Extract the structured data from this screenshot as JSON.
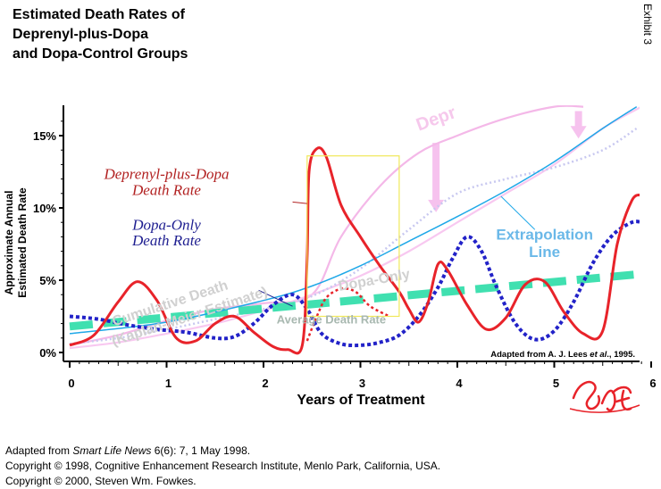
{
  "header": {
    "title_lines": [
      "Estimated Death Rates of",
      "Deprenyl-plus-Dopa",
      "and Dopa-Control Groups"
    ],
    "exhibit": "Exhibit 3"
  },
  "footer": {
    "line1_prefix": "Adapted from ",
    "line1_pub": "Smart Life News",
    "line1_suffix": " 6(6): 7, 1 May 1998.",
    "line2": "Copyright © 1998, Cognitive Enhancement Research Institute, Menlo Park, California, USA.",
    "line3": "Copyright © 2000, Steven Wm. Fowkes."
  },
  "chart_data": {
    "type": "line",
    "title": "Estimated Death Rates of Deprenyl-plus-Dopa and Dopa-Control Groups",
    "xlabel": "Years of Treatment",
    "ylabel": [
      "Approximate Annual",
      "Estimated Death Rate"
    ],
    "xlim": [
      0,
      6
    ],
    "ylim": [
      0,
      17
    ],
    "xticks": [
      0,
      1,
      2,
      3,
      4,
      5,
      6
    ],
    "xtick_labels": [
      "0",
      "1",
      "2",
      "3",
      "4",
      "5",
      "6"
    ],
    "yticks": [
      0,
      5,
      10,
      15
    ],
    "ytick_labels": [
      "0%",
      "5%",
      "10%",
      "15%"
    ],
    "series": [
      {
        "name": "Deprenyl-plus-Dopa Death Rate",
        "color": "#e8232a",
        "style": "solid",
        "x": [
          0,
          0.25,
          0.5,
          0.7,
          0.9,
          1.1,
          1.3,
          1.5,
          1.7,
          1.9,
          2.1,
          2.25,
          2.4,
          2.45,
          2.47,
          2.55,
          2.65,
          2.8,
          3.0,
          3.2,
          3.4,
          3.5,
          3.6,
          3.7,
          3.8,
          3.9,
          4.1,
          4.3,
          4.5,
          4.7,
          4.9,
          5.1,
          5.3,
          5.5,
          5.65,
          5.8,
          5.9
        ],
        "values": [
          0.5,
          1.2,
          3.5,
          4.9,
          3.6,
          1.0,
          0.8,
          2.0,
          2.5,
          1.4,
          0.4,
          0.2,
          0.5,
          6.5,
          12.5,
          14.1,
          13.5,
          10.2,
          8.0,
          6.0,
          4.2,
          3.0,
          2.1,
          3.5,
          6.1,
          5.7,
          3.3,
          1.6,
          2.4,
          4.7,
          4.9,
          2.8,
          1.3,
          1.5,
          7.5,
          10.5,
          10.9
        ]
      },
      {
        "name": "Dopa-Only Death Rate",
        "color": "#2222c8",
        "style": "dotted",
        "x": [
          0,
          0.3,
          0.6,
          0.9,
          1.2,
          1.5,
          1.7,
          1.9,
          2.1,
          2.3,
          2.45,
          2.6,
          2.8,
          3.0,
          3.2,
          3.4,
          3.6,
          3.8,
          3.95,
          4.1,
          4.25,
          4.4,
          4.6,
          4.8,
          5.0,
          5.2,
          5.4,
          5.6,
          5.8,
          5.9
        ],
        "values": [
          2.5,
          2.3,
          1.9,
          1.6,
          1.4,
          1.0,
          1.1,
          2.0,
          3.3,
          4.0,
          3.0,
          1.3,
          0.6,
          0.5,
          0.7,
          1.2,
          2.5,
          4.5,
          6.5,
          8.0,
          7.0,
          4.6,
          2.0,
          0.9,
          1.5,
          3.5,
          6.2,
          8.1,
          9.0,
          9.0
        ]
      },
      {
        "name": "Extrapolation Line",
        "color": "#1ea8e8",
        "style": "solid",
        "x": [
          0,
          1,
          2,
          2.5,
          3,
          3.5,
          4,
          4.5,
          5,
          5.5,
          5.85
        ],
        "values": [
          1.3,
          2.1,
          3.6,
          4.6,
          6.0,
          7.7,
          9.4,
          11.2,
          13.2,
          15.5,
          17.0
        ]
      },
      {
        "name": "Average Death Rate",
        "color": "#40e0b0",
        "style": "dashed",
        "x": [
          0,
          5.85
        ],
        "values": [
          1.8,
          5.4
        ]
      },
      {
        "name": "Deprenyl Cumulative (faded)",
        "color": "#f4b8e8",
        "style": "solid",
        "x": [
          0,
          0.5,
          1.0,
          1.5,
          2.0,
          2.5,
          2.8,
          3.2,
          3.6,
          4.0,
          4.5,
          5.0,
          5.3
        ],
        "values": [
          0.5,
          1.2,
          2.2,
          3.0,
          3.4,
          4.0,
          8.0,
          11.5,
          13.8,
          15.0,
          16.2,
          17.0,
          17.0
        ]
      },
      {
        "name": "Dopa-Only Cumulative (faded)",
        "color": "#f8c8f0",
        "style": "solid",
        "x": [
          0,
          0.5,
          1.0,
          1.5,
          2.0,
          2.5,
          3.0,
          3.5,
          4.0,
          4.5,
          5.0,
          5.5,
          5.9
        ],
        "values": [
          0.3,
          0.7,
          1.3,
          2.0,
          2.9,
          4.0,
          5.3,
          7.0,
          9.0,
          11.0,
          13.0,
          15.5,
          17.0
        ]
      },
      {
        "name": "Cumulative (faded, dotted)",
        "color": "#c8c8f0",
        "style": "dotted",
        "x": [
          0,
          0.5,
          1.0,
          1.5,
          2.0,
          2.5,
          3.0,
          3.5,
          4.0,
          4.5,
          5.0,
          5.5,
          5.85
        ],
        "values": [
          0.6,
          1.0,
          1.6,
          2.3,
          3.0,
          3.9,
          5.8,
          8.5,
          11.0,
          12.0,
          12.8,
          14.0,
          15.5
        ]
      },
      {
        "name": "Deprenyl dotted hump",
        "color": "#e8232a",
        "style": "dotted",
        "x": [
          2.45,
          2.55,
          2.65,
          2.8,
          2.95,
          3.1,
          3.3
        ],
        "values": [
          0.8,
          2.5,
          3.8,
          4.4,
          4.2,
          3.2,
          2.5
        ]
      }
    ],
    "annotations": [
      {
        "text": "Deprenyl-plus-Dopa",
        "x": 1.0,
        "y": 12.0,
        "color": "#b22222"
      },
      {
        "text": "Death Rate",
        "x": 1.0,
        "y": 10.9,
        "color": "#b22222"
      },
      {
        "text": "Dopa-Only",
        "x": 1.0,
        "y": 8.5,
        "color": "#1e1e90"
      },
      {
        "text": "Death Rate",
        "x": 1.0,
        "y": 7.4,
        "color": "#1e1e90"
      },
      {
        "text": "Extrapolation",
        "x": 4.9,
        "y": 7.8,
        "color": "#6ab8e8"
      },
      {
        "text": "Line",
        "x": 4.9,
        "y": 6.6,
        "color": "#6ab8e8"
      },
      {
        "text": "Average Death Rate",
        "x": 2.7,
        "y": 2.0,
        "color": "#a8b8b0"
      },
      {
        "text": "Dopa-Only",
        "x": 3.15,
        "y": 4.7,
        "color": "#d0d0d0"
      },
      {
        "text": "Cumulative Death",
        "x": 1.05,
        "y": 3.1,
        "color": "#d0d0d0"
      },
      {
        "text": "(Kaplan-Meier Estimate)",
        "x": 1.25,
        "y": 2.2,
        "color": "#d0d0d0"
      },
      {
        "text": "Depr",
        "x": 3.8,
        "y": 15.8,
        "color": "#f6c8ec"
      }
    ],
    "source_note": {
      "prefix": "Adapted from A. J. Lees ",
      "italic": "et al",
      "suffix": "., 1995."
    },
    "signature": "SWF"
  }
}
